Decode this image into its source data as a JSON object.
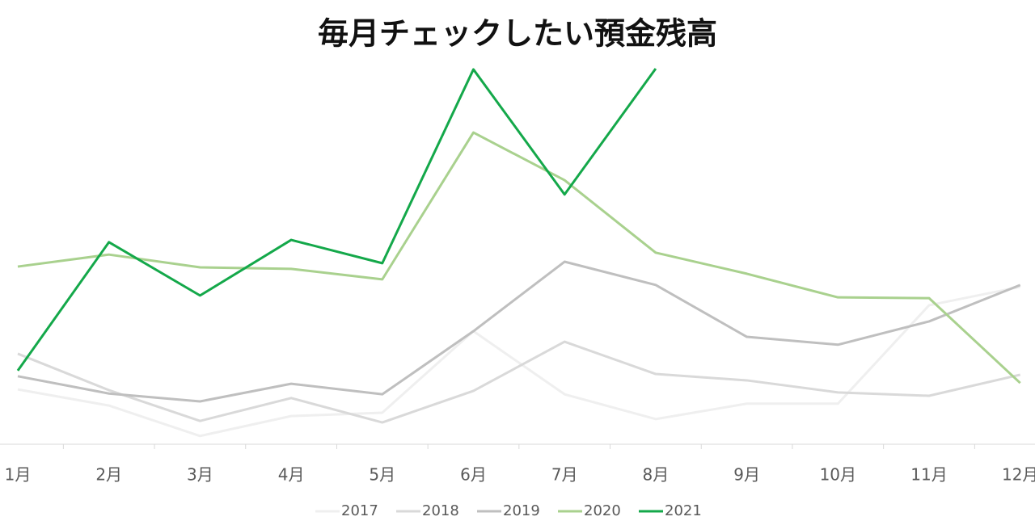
{
  "chart_data": {
    "type": "line",
    "title": "毎月チェックしたい預金残高",
    "categories": [
      "1月",
      "2月",
      "3月",
      "4月",
      "5月",
      "6月",
      "7月",
      "8月",
      "9月",
      "10月",
      "11月",
      "12月"
    ],
    "ylim": [
      0,
      100
    ],
    "legend": "bottom",
    "series": [
      {
        "name": "2017",
        "color": "#efefef",
        "values": [
          14.6,
          10.3,
          2.2,
          7.5,
          8.4,
          30.1,
          13.3,
          6.7,
          10.8,
          10.8,
          37.0,
          41.9
        ]
      },
      {
        "name": "2018",
        "color": "#d9d9d9",
        "values": [
          24.1,
          14.4,
          6.2,
          12.3,
          5.8,
          14.2,
          27.3,
          18.7,
          17.0,
          13.8,
          12.9,
          18.5
        ]
      },
      {
        "name": "2019",
        "color": "#bfbfbf",
        "values": [
          18.1,
          13.5,
          11.4,
          16.1,
          13.3,
          30.1,
          48.6,
          42.4,
          28.6,
          26.5,
          32.7,
          42.4
        ]
      },
      {
        "name": "2020",
        "color": "#a9d18e",
        "values": [
          47.3,
          50.5,
          47.1,
          46.7,
          43.9,
          83.0,
          70.3,
          51.0,
          45.4,
          39.1,
          38.9,
          16.3
        ]
      },
      {
        "name": "2021",
        "color": "#14a84a",
        "values": [
          19.6,
          53.8,
          39.6,
          54.4,
          48.2,
          99.8,
          66.5,
          100,
          null,
          null,
          null,
          null
        ]
      }
    ]
  }
}
